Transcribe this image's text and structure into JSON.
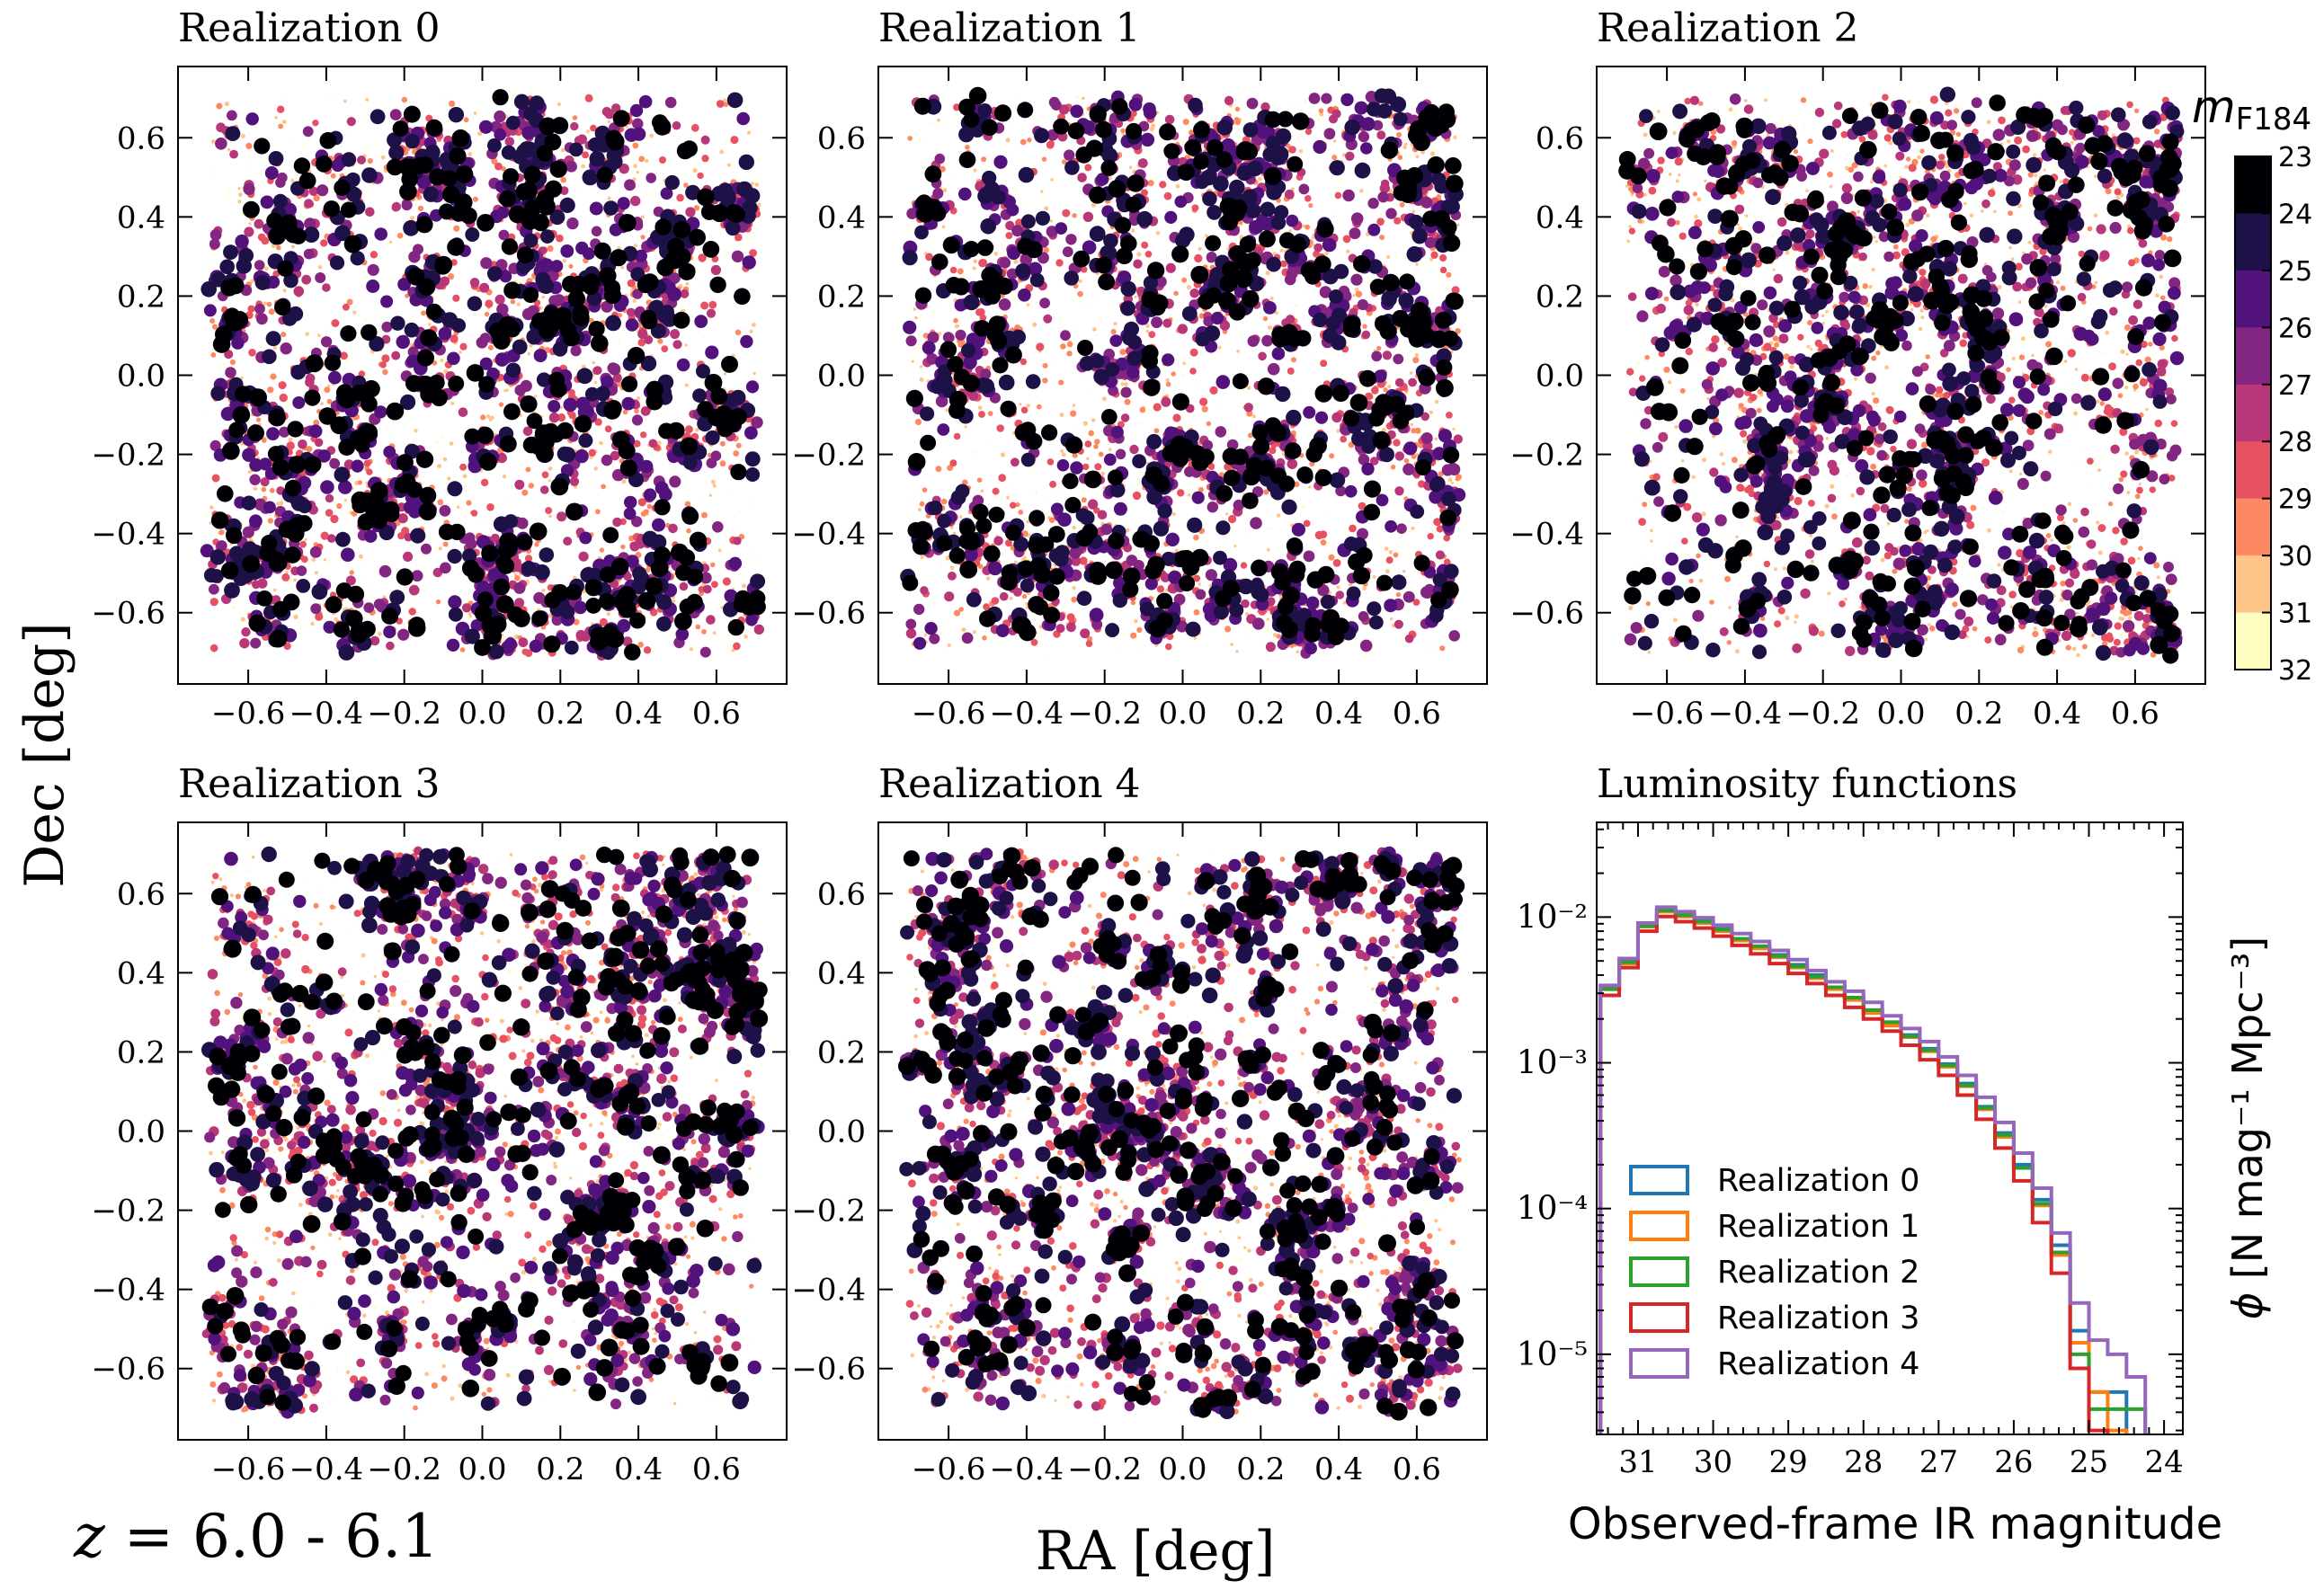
{
  "figure": {
    "redshift_label": "z = 6.0 - 6.1",
    "redshift_var": "z",
    "redshift_text": " = 6.0 - 6.1",
    "xlabel": "RA [deg]",
    "ylabel": "Dec [deg]"
  },
  "panels": [
    {
      "title": "Realization 0",
      "seed": 101
    },
    {
      "title": "Realization 1",
      "seed": 202
    },
    {
      "title": "Realization 2",
      "seed": 303
    },
    {
      "title": "Realization 3",
      "seed": 404
    },
    {
      "title": "Realization 4",
      "seed": 505
    }
  ],
  "map_axes": {
    "xlim": [
      -0.78,
      0.78
    ],
    "ylim": [
      -0.78,
      0.78
    ],
    "ticks": [
      -0.6,
      -0.4,
      -0.2,
      0.0,
      0.2,
      0.4,
      0.6
    ],
    "tick_labels": [
      "−0.6",
      "−0.4",
      "−0.2",
      "0.0",
      "0.2",
      "0.4",
      "0.6"
    ]
  },
  "colorbar": {
    "label_var": "m",
    "label_sub": "F184",
    "min": 23,
    "max": 32,
    "ticks": [
      23,
      24,
      25,
      26,
      27,
      28,
      29,
      30,
      31,
      32
    ],
    "colors": [
      "#000004",
      "#1d1147",
      "#51127c",
      "#822681",
      "#b73779",
      "#e75263",
      "#fc8961",
      "#fec488",
      "#fcfdbf"
    ]
  },
  "chart_data": {
    "type": "step-histogram",
    "title": "Luminosity functions",
    "xlabel": "Observed-frame IR magnitude",
    "ylabel_var": "ϕ",
    "ylabel_units": "[N mag⁻¹ Mpc⁻³]",
    "xlim": [
      31.55,
      23.75
    ],
    "ylim_log10": [
      -5.55,
      -1.35
    ],
    "x_ticks": [
      31,
      30,
      29,
      28,
      27,
      26,
      25,
      24
    ],
    "y_ticks_log10": [
      -5,
      -4,
      -3,
      -2
    ],
    "y_tick_labels": [
      "10⁻⁵",
      "10⁻⁴",
      "10⁻³",
      "10⁻²"
    ],
    "bin_edges": [
      31.5,
      31.25,
      31.0,
      30.75,
      30.5,
      30.25,
      30.0,
      29.75,
      29.5,
      29.25,
      29.0,
      28.75,
      28.5,
      28.25,
      28.0,
      27.75,
      27.5,
      27.25,
      27.0,
      26.75,
      26.5,
      26.25,
      26.0,
      25.75,
      25.5,
      25.25,
      25.0,
      24.75,
      24.5,
      24.25,
      24.0
    ],
    "series": [
      {
        "name": "Realization 0",
        "color": "#1f77b4",
        "values": [
          0.0033,
          0.005,
          0.0088,
          0.0112,
          0.0104,
          0.0094,
          0.0083,
          0.0071,
          0.0063,
          0.0055,
          0.0047,
          0.004,
          0.0033,
          0.0028,
          0.0023,
          0.0019,
          0.00155,
          0.00125,
          0.00098,
          0.00072,
          0.0005,
          0.00033,
          0.0002,
          0.000115,
          5.6e-05,
          1.45e-05,
          5.5e-06,
          5.5e-06,
          null,
          null
        ]
      },
      {
        "name": "Realization 1",
        "color": "#ff7f0e",
        "values": [
          0.0032,
          0.0048,
          0.0086,
          0.0109,
          0.0101,
          0.0091,
          0.008,
          0.0069,
          0.0061,
          0.0053,
          0.0045,
          0.0038,
          0.0032,
          0.0027,
          0.0022,
          0.0018,
          0.0015,
          0.0012,
          0.00094,
          0.00069,
          0.00048,
          0.00031,
          0.00019,
          0.000105,
          4.8e-05,
          1.2e-05,
          5.5e-06,
          3e-06,
          null,
          null
        ]
      },
      {
        "name": "Realization 2",
        "color": "#2ca02c",
        "values": [
          0.0032,
          0.0049,
          0.0087,
          0.0111,
          0.0103,
          0.0093,
          0.0082,
          0.0071,
          0.0063,
          0.0054,
          0.0046,
          0.0039,
          0.0033,
          0.0028,
          0.0023,
          0.0019,
          0.00152,
          0.00122,
          0.00096,
          0.0007,
          0.00049,
          0.00032,
          0.00019,
          0.000108,
          5e-05,
          1e-05,
          4.2e-06,
          4.2e-06,
          4.2e-06,
          null
        ]
      },
      {
        "name": "Realization 3",
        "color": "#d62728",
        "values": [
          0.0029,
          0.0045,
          0.008,
          0.0101,
          0.0093,
          0.0084,
          0.0074,
          0.0064,
          0.0056,
          0.0048,
          0.0041,
          0.0035,
          0.0029,
          0.0024,
          0.002,
          0.00165,
          0.00132,
          0.00105,
          0.00082,
          0.0006,
          0.00041,
          0.00026,
          0.000155,
          8e-05,
          3.6e-05,
          8e-06,
          3e-06,
          null,
          null,
          null
        ]
      },
      {
        "name": "Realization 4",
        "color": "#9467bd",
        "values": [
          0.0034,
          0.0052,
          0.0091,
          0.0117,
          0.0109,
          0.0099,
          0.0088,
          0.0077,
          0.0068,
          0.0059,
          0.0051,
          0.0043,
          0.0036,
          0.0031,
          0.0026,
          0.0021,
          0.00172,
          0.0014,
          0.0011,
          0.00082,
          0.00058,
          0.00039,
          0.00024,
          0.000138,
          6.8e-05,
          2.25e-05,
          1.25e-05,
          1e-05,
          7e-06,
          null
        ]
      }
    ]
  }
}
